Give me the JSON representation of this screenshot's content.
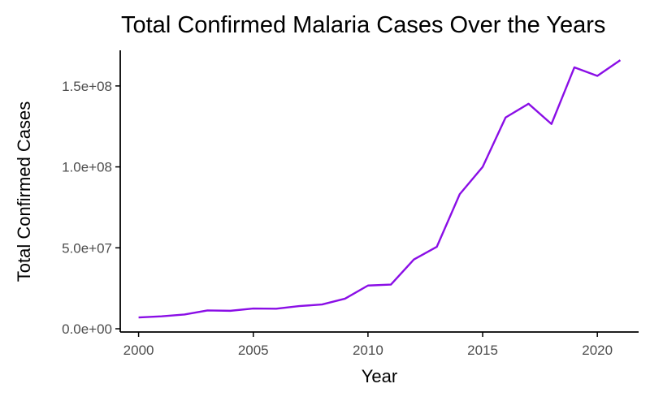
{
  "chart_data": {
    "type": "line",
    "title": "Total Confirmed Malaria Cases Over the Years",
    "xlabel": "Year",
    "ylabel": "Total Confirmed Cases",
    "xlim": [
      1999.2,
      2021.8
    ],
    "ylim": [
      -2000000,
      172000000
    ],
    "x_ticks": [
      2000,
      2005,
      2010,
      2015,
      2020
    ],
    "x_tick_labels": [
      "2000",
      "2005",
      "2010",
      "2015",
      "2020"
    ],
    "y_ticks": [
      0,
      50000000,
      100000000,
      150000000
    ],
    "y_tick_labels": [
      "0.0e+00",
      "5.0e+07",
      "1.0e+08",
      "1.5e+08"
    ],
    "grid": false,
    "legend": "none",
    "series": [
      {
        "color": "#8a0ee6",
        "x": [
          2000,
          2001,
          2002,
          2003,
          2004,
          2005,
          2006,
          2007,
          2008,
          2009,
          2010,
          2011,
          2012,
          2013,
          2014,
          2015,
          2016,
          2017,
          2018,
          2019,
          2020,
          2021
        ],
        "values": [
          7000000,
          7700000,
          8800000,
          11300000,
          11100000,
          12500000,
          12400000,
          14000000,
          15000000,
          18600000,
          26700000,
          27300000,
          42800000,
          50600000,
          83100000,
          100000000,
          130500000,
          139000000,
          126500000,
          161500000,
          156200000,
          165900000
        ]
      }
    ]
  }
}
